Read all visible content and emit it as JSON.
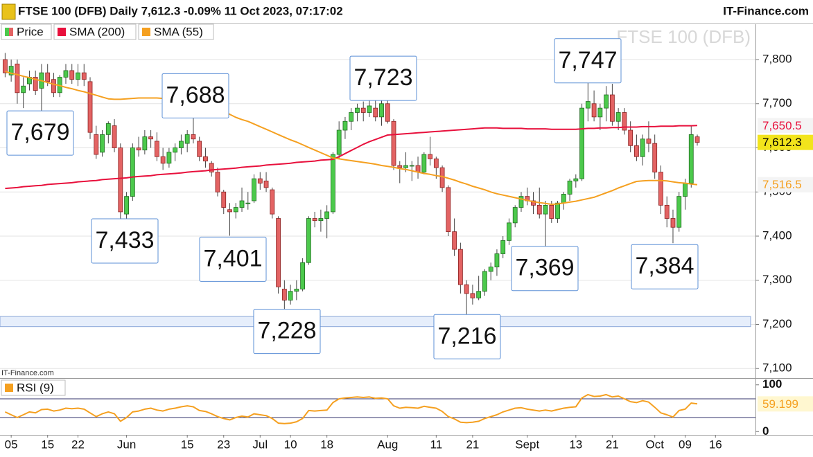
{
  "header": {
    "title": "FTSE 100 (DFB) Daily 7,612.3 -0.09% 11 Oct 2023, 07:17:02",
    "brand": "IT-Finance.com",
    "watermark": "FTSE 100 (DFB)",
    "source": "IT-Finance.com"
  },
  "chart_data": [
    {
      "type": "candlestick",
      "name": "Price",
      "up_color": "#4cc94c",
      "down_color": "#e36363",
      "categories": [
        null,
        "05",
        null,
        null,
        null,
        null,
        null,
        "15",
        null,
        null,
        null,
        null,
        "22",
        null,
        null,
        null,
        null,
        null,
        null,
        null,
        "Jun",
        null,
        null,
        null,
        null,
        null,
        null,
        null,
        null,
        null,
        "15",
        null,
        null,
        null,
        null,
        null,
        "23",
        null,
        null,
        null,
        null,
        null,
        "Jul",
        null,
        null,
        null,
        null,
        "10",
        null,
        null,
        null,
        null,
        null,
        "18",
        null,
        null,
        null,
        null,
        null,
        null,
        null,
        null,
        null,
        "Aug",
        null,
        null,
        null,
        null,
        null,
        null,
        null,
        "11",
        null,
        null,
        null,
        null,
        null,
        "21",
        null,
        null,
        null,
        null,
        null,
        null,
        null,
        null,
        "Sept",
        null,
        null,
        null,
        null,
        null,
        null,
        null,
        "13",
        null,
        null,
        null,
        null,
        null,
        "21",
        null,
        null,
        null,
        null,
        null,
        null,
        "Oct",
        null,
        null,
        null,
        null,
        "09",
        null,
        null,
        null,
        null,
        "16",
        null,
        null,
        null,
        null,
        null,
        null
      ],
      "open": [
        7800,
        7765,
        7790,
        7725,
        7745,
        7760,
        7735,
        7770,
        7755,
        7725,
        7760,
        7775,
        7755,
        7770,
        7750,
        7630,
        7590,
        7630,
        7650,
        7600,
        7450,
        7490,
        7600,
        7595,
        7625,
        7615,
        7580,
        7565,
        7590,
        7600,
        7610,
        7630,
        7615,
        7580,
        7565,
        7545,
        7500,
        7460,
        7455,
        7465,
        7475,
        7480,
        7530,
        7525,
        7505,
        7440,
        7280,
        7255,
        7275,
        7280,
        7340,
        7440,
        7435,
        7440,
        7455,
        7585,
        7640,
        7660,
        7680,
        7690,
        7680,
        7690,
        7670,
        7700,
        7660,
        7560,
        7555,
        7560,
        7560,
        7545,
        7585,
        7575,
        7555,
        7510,
        7410,
        7370,
        7290,
        7270,
        7260,
        7275,
        7320,
        7330,
        7360,
        7390,
        7430,
        7465,
        7490,
        7480,
        7470,
        7450,
        7470,
        7440,
        7475,
        7495,
        7525,
        7530,
        7690,
        7700,
        7670,
        7690,
        7720,
        7660,
        7680,
        7640,
        7605,
        7580,
        7620,
        7610,
        7545,
        7470,
        7440,
        7420,
        7490,
        7520,
        7625,
        null,
        null,
        null,
        null,
        null,
        null,
        null,
        null,
        null
      ],
      "high": [
        7815,
        7800,
        7800,
        7760,
        7775,
        7775,
        7790,
        7790,
        7770,
        7765,
        7790,
        7790,
        7790,
        7790,
        7760,
        7650,
        7640,
        7660,
        7665,
        7610,
        7500,
        7610,
        7625,
        7640,
        7640,
        7635,
        7600,
        7600,
        7610,
        7630,
        7640,
        7688,
        7625,
        7600,
        7570,
        7555,
        7505,
        7475,
        7475,
        7510,
        7500,
        7540,
        7545,
        7545,
        7510,
        7445,
        7300,
        7290,
        7300,
        7350,
        7445,
        7455,
        7460,
        7470,
        7590,
        7660,
        7670,
        7690,
        7700,
        7705,
        7723,
        7715,
        7710,
        7720,
        7665,
        7570,
        7590,
        7570,
        7580,
        7590,
        7625,
        7580,
        7560,
        7515,
        7440,
        7385,
        7300,
        7290,
        7310,
        7325,
        7340,
        7370,
        7400,
        7440,
        7470,
        7500,
        7510,
        7500,
        7510,
        7480,
        7480,
        7480,
        7500,
        7530,
        7540,
        7700,
        7747,
        7730,
        7700,
        7740,
        7745,
        7690,
        7690,
        7660,
        7630,
        7630,
        7660,
        7630,
        7560,
        7490,
        7460,
        7500,
        7530,
        7650,
        7630,
        null,
        null,
        null,
        null,
        null,
        null,
        null,
        null,
        null
      ],
      "low": [
        7760,
        7750,
        7700,
        7690,
        7730,
        7720,
        7679,
        7740,
        7715,
        7715,
        7745,
        7745,
        7740,
        7740,
        7620,
        7575,
        7580,
        7610,
        7590,
        7433,
        7440,
        7480,
        7580,
        7585,
        7600,
        7570,
        7550,
        7555,
        7570,
        7585,
        7590,
        7610,
        7570,
        7555,
        7535,
        7490,
        7450,
        7401,
        7440,
        7455,
        7460,
        7475,
        7505,
        7500,
        7440,
        7270,
        7228,
        7245,
        7255,
        7275,
        7335,
        7420,
        7410,
        7395,
        7450,
        7575,
        7620,
        7640,
        7660,
        7660,
        7670,
        7660,
        7650,
        7655,
        7550,
        7520,
        7545,
        7525,
        7530,
        7540,
        7560,
        7530,
        7500,
        7400,
        7355,
        7270,
        7216,
        7245,
        7255,
        7265,
        7300,
        7310,
        7350,
        7380,
        7420,
        7455,
        7470,
        7450,
        7440,
        7369,
        7430,
        7430,
        7460,
        7480,
        7510,
        7525,
        7660,
        7660,
        7640,
        7660,
        7650,
        7640,
        7630,
        7590,
        7570,
        7560,
        7590,
        7530,
        7450,
        7420,
        7384,
        7410,
        7460,
        7510,
        7605,
        null,
        null,
        null,
        null,
        null,
        null,
        null,
        null,
        null
      ],
      "close": [
        7770,
        7785,
        7725,
        7740,
        7760,
        7730,
        7770,
        7750,
        7725,
        7760,
        7775,
        7755,
        7770,
        7755,
        7635,
        7585,
        7630,
        7655,
        7600,
        7455,
        7490,
        7600,
        7595,
        7625,
        7620,
        7580,
        7565,
        7590,
        7600,
        7615,
        7630,
        7620,
        7580,
        7570,
        7545,
        7500,
        7465,
        7455,
        7465,
        7480,
        7475,
        7530,
        7520,
        7510,
        7450,
        7285,
        7255,
        7275,
        7280,
        7340,
        7440,
        7435,
        7440,
        7455,
        7585,
        7640,
        7660,
        7680,
        7690,
        7680,
        7695,
        7670,
        7700,
        7660,
        7560,
        7555,
        7560,
        7560,
        7545,
        7585,
        7575,
        7555,
        7510,
        7410,
        7370,
        7290,
        7270,
        7260,
        7275,
        7320,
        7330,
        7360,
        7390,
        7430,
        7465,
        7490,
        7480,
        7470,
        7450,
        7470,
        7440,
        7475,
        7495,
        7525,
        7530,
        7690,
        7705,
        7670,
        7690,
        7720,
        7660,
        7680,
        7640,
        7605,
        7580,
        7620,
        7610,
        7545,
        7470,
        7440,
        7420,
        7490,
        7520,
        7630,
        7612.3,
        null,
        null,
        null,
        null,
        null,
        null,
        null,
        null,
        null
      ],
      "last_label": "7,612.3",
      "last_label_color": "#f2e41c",
      "series": [
        {
          "name": "SMA (200)",
          "color": "#e8103c",
          "last_label": "7,650.5",
          "values": [
            7508,
            7509,
            7510,
            7512,
            7513,
            7514,
            7515,
            7517,
            7518,
            7519,
            7520,
            7521,
            7523,
            7524,
            7525,
            7526,
            7528,
            7529,
            7530,
            7531,
            7532,
            7534,
            7535,
            7536,
            7537,
            7539,
            7540,
            7541,
            7542,
            7543,
            7545,
            7546,
            7547,
            7548,
            7550,
            7551,
            7552,
            7553,
            7554,
            7556,
            7557,
            7558,
            7559,
            7561,
            7562,
            7563,
            7564,
            7565,
            7567,
            7568,
            7569,
            7570,
            7572,
            7573,
            7574,
            7580,
            7587,
            7594,
            7601,
            7608,
            7614,
            7619,
            7624,
            7629,
            7630,
            7631,
            7632,
            7633,
            7634,
            7635,
            7636,
            7637,
            7638,
            7639,
            7640,
            7641,
            7642,
            7643,
            7644,
            7645,
            7645,
            7645,
            7644,
            7644,
            7644,
            7644,
            7643,
            7643,
            7643,
            7643,
            7642,
            7642,
            7642,
            7642,
            7642,
            7643,
            7644,
            7644,
            7645,
            7645,
            7646,
            7646,
            7647,
            7647,
            7647,
            7648,
            7648,
            7648,
            7649,
            7649,
            7649,
            7650,
            7650,
            7650,
            7650.5,
            null,
            null,
            null,
            null,
            null,
            null,
            null,
            null,
            null
          ]
        },
        {
          "name": "SMA (55)",
          "color": "#f5a020",
          "last_label": "7,516.5",
          "values": [
            7773,
            7769,
            7766,
            7762,
            7759,
            7755,
            7752,
            7748,
            7744,
            7741,
            7737,
            7734,
            7730,
            7727,
            7723,
            7719,
            7715,
            7711,
            7710,
            7710,
            7711,
            7712,
            7713,
            7713,
            7713,
            7713,
            7712,
            7712,
            7711,
            7711,
            7710,
            7709,
            7708,
            7707,
            7700,
            7692,
            7684,
            7676,
            7669,
            7664,
            7660,
            7654,
            7648,
            7642,
            7636,
            7630,
            7624,
            7618,
            7613,
            7607,
            7601,
            7595,
            7589,
            7583,
            7577,
            7575,
            7573,
            7571,
            7569,
            7567,
            7565,
            7563,
            7560,
            7558,
            7556,
            7553,
            7551,
            7548,
            7545,
            7542,
            7540,
            7537,
            7535,
            7531,
            7527,
            7522,
            7518,
            7513,
            7509,
            7505,
            7500,
            7496,
            7493,
            7490,
            7487,
            7484,
            7481,
            7478,
            7476,
            7474,
            7472,
            7473,
            7475,
            7477,
            7479,
            7482,
            7485,
            7488,
            7493,
            7498,
            7503,
            7509,
            7514,
            7519,
            7524,
            7525,
            7526,
            7526,
            7526,
            7525,
            7523,
            7521,
            7520,
            7518,
            7516.5,
            null,
            null,
            null,
            null,
            null,
            null,
            null,
            null,
            null
          ]
        }
      ],
      "ylim": [
        7080,
        7880
      ],
      "yticks": [
        {
          "value": 7100,
          "label": "7,100"
        },
        {
          "value": 7200,
          "label": "7,200"
        },
        {
          "value": 7300,
          "label": "7,300"
        },
        {
          "value": 7400,
          "label": "7,400"
        },
        {
          "value": 7500,
          "label": "7,500"
        },
        {
          "value": 7600,
          "label": "7,600"
        },
        {
          "value": 7700,
          "label": "7,700"
        },
        {
          "value": 7800,
          "label": "7,800"
        }
      ],
      "grid": true,
      "zones": [
        [
          7195,
          7218
        ]
      ],
      "annotations": [
        {
          "value": 7679,
          "label": "7,679"
        },
        {
          "value": 7433,
          "label": "7,433"
        },
        {
          "value": 7688,
          "label": "7,688"
        },
        {
          "value": 7401,
          "label": "7,401"
        },
        {
          "value": 7723,
          "label": "7,723"
        },
        {
          "value": 7228,
          "label": "7,228"
        },
        {
          "value": 7216,
          "label": "7,216"
        },
        {
          "value": 7369,
          "label": "7,369"
        },
        {
          "value": 7747,
          "label": "7,747"
        },
        {
          "value": 7384,
          "label": "7,384"
        }
      ]
    },
    {
      "type": "line",
      "series": [
        {
          "name": "RSI (9)",
          "color": "#f5a020",
          "last_label": "59.199",
          "values": [
            42,
            36,
            30,
            36,
            42,
            40,
            47,
            48,
            44,
            46,
            50,
            49,
            50,
            48,
            40,
            32,
            38,
            42,
            38,
            22,
            30,
            42,
            44,
            48,
            50,
            46,
            44,
            48,
            50,
            53,
            55,
            53,
            45,
            43,
            38,
            32,
            28,
            25,
            30,
            33,
            31,
            38,
            36,
            34,
            28,
            18,
            17,
            18,
            21,
            28,
            45,
            44,
            45,
            46,
            62,
            70,
            72,
            73,
            74,
            73,
            74,
            71,
            72,
            70,
            55,
            50,
            52,
            51,
            50,
            54,
            52,
            50,
            43,
            32,
            27,
            20,
            19,
            20,
            22,
            28,
            32,
            36,
            42,
            46,
            50,
            51,
            48,
            46,
            44,
            46,
            44,
            47,
            50,
            52,
            53,
            72,
            79,
            75,
            76,
            79,
            74,
            76,
            70,
            64,
            62,
            66,
            63,
            52,
            40,
            36,
            31,
            45,
            48,
            61,
            59.199,
            null,
            null,
            null,
            null,
            null,
            null,
            null,
            null,
            null
          ]
        }
      ],
      "ylim": [
        -7,
        111.5
      ],
      "yticks": [
        0,
        100
      ],
      "levels": [
        30,
        70
      ]
    }
  ]
}
